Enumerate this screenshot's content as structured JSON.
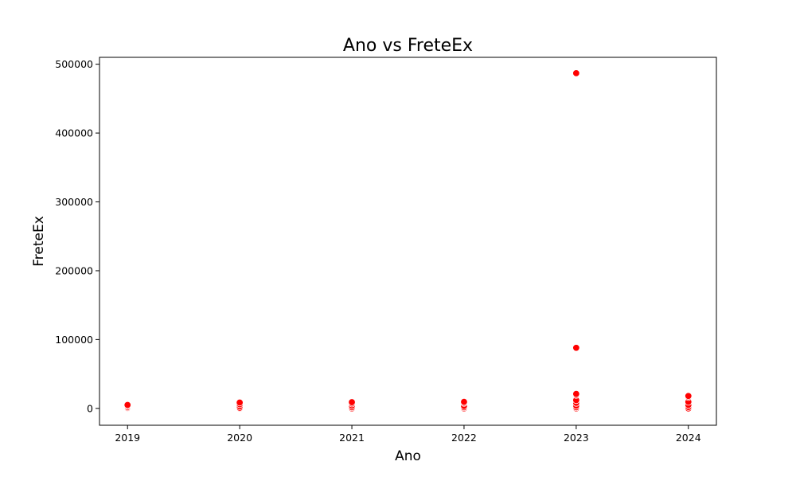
{
  "chart_data": {
    "type": "scatter",
    "title": "Ano vs FreteEx",
    "xlabel": "Ano",
    "ylabel": "FreteEx",
    "x_ticks": [
      2019,
      2020,
      2021,
      2022,
      2023,
      2024
    ],
    "y_ticks": [
      0,
      100000,
      200000,
      300000,
      400000,
      500000
    ],
    "x_ticklabels": [
      "2019",
      "2020",
      "2021",
      "2022",
      "2023",
      "2024"
    ],
    "y_ticklabels": [
      "0",
      "100000",
      "200000",
      "300000",
      "400000",
      "500000"
    ],
    "xlim": [
      2018.75,
      2024.25
    ],
    "ylim": [
      -24500,
      510000
    ],
    "grid": false,
    "marker_color": "#ff0000",
    "marker_edge_color": "#ffffff",
    "points": [
      {
        "x": 2019,
        "y": 0
      },
      {
        "x": 2019,
        "y": 800
      },
      {
        "x": 2019,
        "y": 2000
      },
      {
        "x": 2019,
        "y": 3500
      },
      {
        "x": 2019,
        "y": 5000
      },
      {
        "x": 2020,
        "y": 0
      },
      {
        "x": 2020,
        "y": 1000
      },
      {
        "x": 2020,
        "y": 3000
      },
      {
        "x": 2020,
        "y": 6000
      },
      {
        "x": 2020,
        "y": 8500
      },
      {
        "x": 2021,
        "y": 0
      },
      {
        "x": 2021,
        "y": 1500
      },
      {
        "x": 2021,
        "y": 4000
      },
      {
        "x": 2021,
        "y": 7000
      },
      {
        "x": 2021,
        "y": 9000
      },
      {
        "x": 2022,
        "y": 0
      },
      {
        "x": 2022,
        "y": 1500
      },
      {
        "x": 2022,
        "y": 3500
      },
      {
        "x": 2022,
        "y": 8000
      },
      {
        "x": 2022,
        "y": 9500
      },
      {
        "x": 2023,
        "y": 0
      },
      {
        "x": 2023,
        "y": 1500
      },
      {
        "x": 2023,
        "y": 4000
      },
      {
        "x": 2023,
        "y": 8000
      },
      {
        "x": 2023,
        "y": 12000
      },
      {
        "x": 2023,
        "y": 19500
      },
      {
        "x": 2023,
        "y": 21000
      },
      {
        "x": 2023,
        "y": 88000
      },
      {
        "x": 2023,
        "y": 487000
      },
      {
        "x": 2024,
        "y": 0
      },
      {
        "x": 2024,
        "y": 2000
      },
      {
        "x": 2024,
        "y": 5000
      },
      {
        "x": 2024,
        "y": 9500
      },
      {
        "x": 2024,
        "y": 16500
      },
      {
        "x": 2024,
        "y": 18000
      }
    ]
  }
}
